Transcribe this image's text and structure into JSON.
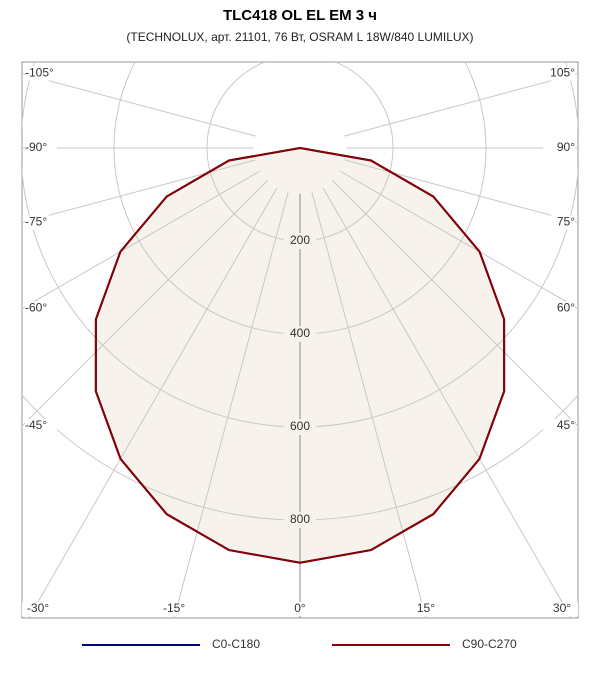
{
  "chart_data": {
    "type": "polar",
    "title": "TLC418 OL EL EM 3 ч",
    "subtitle": "(TECHNOLUX, арт. 21101, 76 Вт, OSRAM L 18W/840 LUMILUX)",
    "x": [
      -90,
      -80,
      -70,
      -60,
      -50,
      -40,
      -30,
      -20,
      -10,
      0,
      10,
      20,
      30,
      40,
      50,
      60,
      70,
      80,
      90
    ],
    "series": [
      {
        "name": "C0-C180",
        "color": "#000080",
        "values": [
          0,
          155,
          305,
          446,
          573,
          683,
          772,
          838,
          878,
          892,
          878,
          838,
          772,
          683,
          573,
          446,
          305,
          155,
          0
        ]
      },
      {
        "name": "C90-C270",
        "color": "#8b0000",
        "values": [
          0,
          155,
          305,
          446,
          573,
          683,
          772,
          838,
          878,
          892,
          878,
          838,
          772,
          683,
          573,
          446,
          305,
          155,
          0
        ]
      }
    ],
    "fill_color": "#f7f3ec",
    "rlim": [
      0,
      1000
    ],
    "rticks": [
      200,
      400,
      600,
      800
    ],
    "xticks": [
      {
        "value": -105,
        "label": "-105°"
      },
      {
        "value": -90,
        "label": "-90°"
      },
      {
        "value": -75,
        "label": "-75°"
      },
      {
        "value": -60,
        "label": "-60°"
      },
      {
        "value": -45,
        "label": "-45°"
      },
      {
        "value": -30,
        "label": "-30°"
      },
      {
        "value": -15,
        "label": "-15°"
      },
      {
        "value": 0,
        "label": "0°"
      },
      {
        "value": 15,
        "label": "15°"
      },
      {
        "value": 30,
        "label": "30°"
      },
      {
        "value": 45,
        "label": "45°"
      },
      {
        "value": 60,
        "label": "60°"
      },
      {
        "value": 75,
        "label": "75°"
      },
      {
        "value": 90,
        "label": "90°"
      },
      {
        "value": 105,
        "label": "105°"
      }
    ],
    "grid": true
  }
}
